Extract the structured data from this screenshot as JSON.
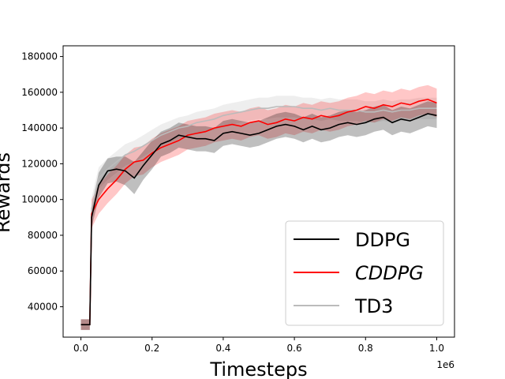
{
  "chart_data": {
    "type": "line",
    "xlabel": "Timesteps",
    "ylabel": "Rewards",
    "x_offset_label": "1e6",
    "xlim": [
      -0.05,
      1.05
    ],
    "ylim": [
      23000,
      186000
    ],
    "x_ticks": [
      0.0,
      0.2,
      0.4,
      0.6,
      0.8,
      1.0
    ],
    "x_tick_labels": [
      "0.0",
      "0.2",
      "0.4",
      "0.6",
      "0.8",
      "1.0"
    ],
    "y_ticks": [
      40000,
      60000,
      80000,
      100000,
      120000,
      140000,
      160000,
      180000
    ],
    "y_tick_labels": [
      "40000",
      "60000",
      "80000",
      "100000",
      "120000",
      "140000",
      "160000",
      "180000"
    ],
    "grid": false,
    "legend_position": "lower-right",
    "x": [
      0.0,
      0.025,
      0.03,
      0.05,
      0.075,
      0.1,
      0.125,
      0.15,
      0.175,
      0.2,
      0.225,
      0.25,
      0.275,
      0.3,
      0.325,
      0.35,
      0.375,
      0.4,
      0.425,
      0.45,
      0.475,
      0.5,
      0.525,
      0.55,
      0.575,
      0.6,
      0.625,
      0.65,
      0.675,
      0.7,
      0.725,
      0.75,
      0.775,
      0.8,
      0.825,
      0.85,
      0.875,
      0.9,
      0.925,
      0.95,
      0.975,
      1.0
    ],
    "series": [
      {
        "name": "DDPG",
        "color": "#000000",
        "values": [
          30000,
          30000,
          90000,
          108000,
          116000,
          117000,
          116000,
          112000,
          119000,
          125000,
          131000,
          133000,
          136000,
          135000,
          134000,
          134000,
          133000,
          137000,
          138000,
          137000,
          136000,
          137000,
          139000,
          141000,
          142000,
          141000,
          139000,
          141000,
          139000,
          140000,
          142000,
          143000,
          142000,
          143000,
          145000,
          146000,
          143000,
          145000,
          144000,
          146000,
          148000,
          147000
        ],
        "band": [
          3000,
          3000,
          6000,
          7000,
          7000,
          7000,
          8000,
          9000,
          8000,
          8000,
          7000,
          7000,
          7000,
          7000,
          7000,
          7000,
          7000,
          7000,
          7000,
          7000,
          7000,
          7000,
          7000,
          7000,
          7000,
          7000,
          7000,
          7000,
          7000,
          7000,
          7000,
          7000,
          7000,
          7000,
          7000,
          7000,
          7000,
          7000,
          7000,
          7000,
          7000,
          7000
        ]
      },
      {
        "name": "CDDPG",
        "color": "#ff0000",
        "values": [
          30000,
          30000,
          92000,
          100000,
          106000,
          111000,
          117000,
          121000,
          122000,
          126000,
          129000,
          131000,
          133000,
          136000,
          137000,
          138000,
          140000,
          141000,
          142000,
          141000,
          143000,
          144000,
          142000,
          143000,
          145000,
          144000,
          146000,
          145000,
          147000,
          146000,
          147000,
          149000,
          150000,
          152000,
          151000,
          153000,
          152000,
          154000,
          153000,
          155000,
          156000,
          154000
        ],
        "band": [
          3000,
          3000,
          8000,
          8000,
          8000,
          8000,
          8000,
          8000,
          8000,
          8000,
          8000,
          8000,
          8000,
          8000,
          8000,
          8000,
          8000,
          8000,
          8000,
          8000,
          8000,
          8000,
          8000,
          8000,
          8000,
          8000,
          8000,
          8000,
          8000,
          8000,
          8000,
          8000,
          8000,
          8000,
          8000,
          8000,
          8000,
          8000,
          8000,
          8000,
          8000,
          8000
        ]
      },
      {
        "name": "TD3",
        "color": "#bbbbbb",
        "values": [
          30000,
          30000,
          95000,
          112000,
          117000,
          121000,
          125000,
          127000,
          130000,
          133000,
          136000,
          138000,
          140000,
          141000,
          143000,
          144000,
          145000,
          147000,
          148000,
          149000,
          150000,
          151000,
          151000,
          152000,
          152000,
          152000,
          151000,
          151000,
          150000,
          151000,
          150000,
          150000,
          150000,
          149000,
          149000,
          150000,
          149000,
          150000,
          150000,
          151000,
          151000,
          151000
        ],
        "band": [
          3000,
          3000,
          6000,
          6000,
          6000,
          6000,
          6000,
          6000,
          6000,
          6000,
          6000,
          6000,
          6000,
          6000,
          6000,
          6000,
          6000,
          6000,
          6000,
          6000,
          6000,
          6000,
          6000,
          6000,
          6000,
          6000,
          6000,
          6000,
          6000,
          6000,
          6000,
          6000,
          6000,
          6000,
          6000,
          6000,
          6000,
          6000,
          6000,
          6000,
          6000,
          6000
        ]
      }
    ],
    "legend_italic": [
      "CDDPG"
    ]
  }
}
